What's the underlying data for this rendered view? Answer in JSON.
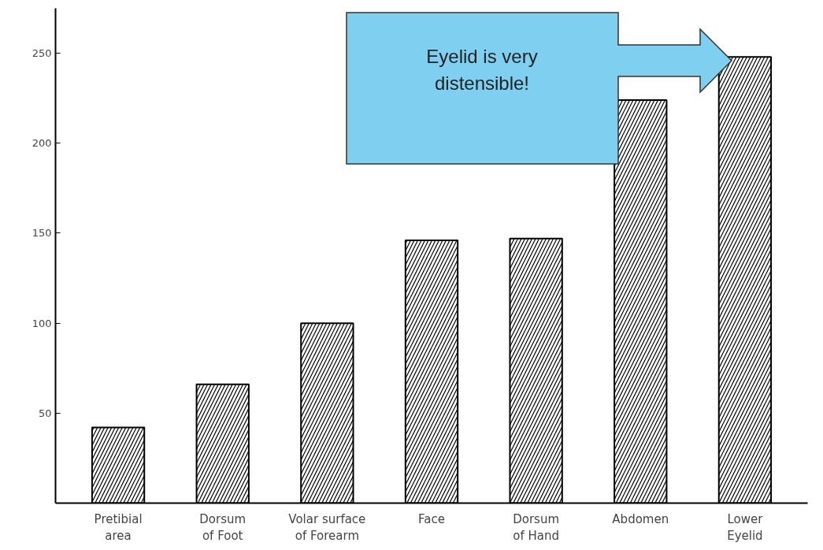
{
  "chart_data": {
    "type": "bar",
    "categories": [
      "Pretibial\narea",
      "Dorsum\nof Foot",
      "Volar surface\nof Forearm",
      "Face",
      "Dorsum\nof Hand",
      "Abdomen",
      "Lower\nEyelid"
    ],
    "values": [
      42,
      66,
      100,
      146,
      147,
      224,
      248
    ],
    "color": "#ffffff",
    "ylim": [
      0,
      275
    ],
    "yticks": [
      50,
      100,
      150,
      200,
      250
    ],
    "grid": false,
    "annotations": [
      "Eyelid is very\ndistensible!"
    ]
  }
}
